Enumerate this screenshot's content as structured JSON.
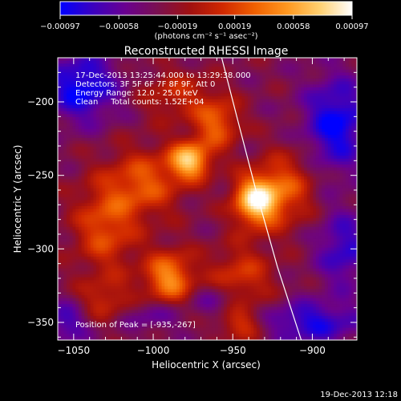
{
  "chart_data": {
    "type": "heatmap",
    "title": "Reconstructed RHESSI Image",
    "xlabel": "Heliocentric X (arcsec)",
    "ylabel": "Heliocentric Y (arcsec)",
    "xlim": [
      -1060,
      -872
    ],
    "ylim": [
      -362,
      -170
    ],
    "x_ticks": [
      -1050,
      -1000,
      -950,
      -900
    ],
    "x_tick_labels": [
      "−1050",
      "−1000",
      "−950",
      "−900"
    ],
    "y_ticks": [
      -350,
      -300,
      -250,
      -200
    ],
    "y_tick_labels": [
      "−350",
      "−300",
      "−250",
      "−200"
    ],
    "colorbar": {
      "range": [
        -0.00097,
        0.00097
      ],
      "ticks": [
        -0.00097,
        -0.00058,
        -0.00019,
        0.00019,
        0.00058,
        0.00097
      ],
      "tick_labels": [
        "−0.00097",
        "−0.00058",
        "−0.00019",
        "0.00019",
        "0.00058",
        "0.00097"
      ],
      "unit_label": "(photons cm⁻² s⁻¹ asec⁻²)",
      "colormap": [
        "#0000ff",
        "#3a00c0",
        "#6a0090",
        "#7a1050",
        "#a01010",
        "#d02800",
        "#f06000",
        "#ff9820",
        "#ffd070",
        "#ffffff"
      ]
    },
    "info_lines": [
      "17-Dec-2013 13:25:44.000 to 13:29:38.000",
      "Detectors: 3F 5F 6F 7F 8F 9F, Att 0",
      "Energy Range: 12.0 - 25.0 keV",
      "Clean     Total counts: 1.52E+04"
    ],
    "peak_label": "Position of Peak = [-935,-267]",
    "peak": [
      -935,
      -267
    ],
    "limb_curve": {
      "x": [
        -957,
        -947,
        -935,
        -922,
        -907
      ],
      "y": [
        -170,
        -212,
        -262,
        -312,
        -362
      ]
    },
    "sources": [
      {
        "x": -935,
        "y": -267,
        "amp": 1.0,
        "sx": 10,
        "sy": 12
      },
      {
        "x": -977,
        "y": -240,
        "amp": 0.82,
        "sx": 9,
        "sy": 9
      },
      {
        "x": -990,
        "y": -320,
        "amp": 0.65,
        "sx": 11,
        "sy": 13
      },
      {
        "x": -1030,
        "y": -285,
        "amp": 0.45,
        "sx": 14,
        "sy": 22
      },
      {
        "x": -1005,
        "y": -255,
        "amp": 0.45,
        "sx": 16,
        "sy": 16
      },
      {
        "x": -960,
        "y": -215,
        "amp": 0.5,
        "sx": 10,
        "sy": 12
      },
      {
        "x": -915,
        "y": -258,
        "amp": 0.4,
        "sx": 12,
        "sy": 18
      },
      {
        "x": -945,
        "y": -320,
        "amp": 0.38,
        "sx": 14,
        "sy": 16
      },
      {
        "x": -945,
        "y": -352,
        "amp": 0.35,
        "sx": 10,
        "sy": 8
      },
      {
        "x": -1030,
        "y": -335,
        "amp": 0.3,
        "sx": 12,
        "sy": 10
      },
      {
        "x": -985,
        "y": -195,
        "amp": 0.3,
        "sx": 16,
        "sy": 12
      }
    ],
    "negative_regions": [
      {
        "x": -1045,
        "y": -190,
        "amp": 0.55,
        "sx": 16,
        "sy": 16
      },
      {
        "x": -885,
        "y": -215,
        "amp": 0.55,
        "sx": 14,
        "sy": 22
      },
      {
        "x": -880,
        "y": -300,
        "amp": 0.4,
        "sx": 12,
        "sy": 18
      },
      {
        "x": -900,
        "y": -350,
        "amp": 0.45,
        "sx": 22,
        "sy": 10
      },
      {
        "x": -1055,
        "y": -350,
        "amp": 0.35,
        "sx": 10,
        "sy": 10
      },
      {
        "x": -1000,
        "y": -345,
        "amp": 0.25,
        "sx": 14,
        "sy": 8
      },
      {
        "x": -960,
        "y": -335,
        "amp": 0.25,
        "sx": 12,
        "sy": 8
      }
    ]
  },
  "footer_timestamp": "19-Dec-2013 12:18"
}
